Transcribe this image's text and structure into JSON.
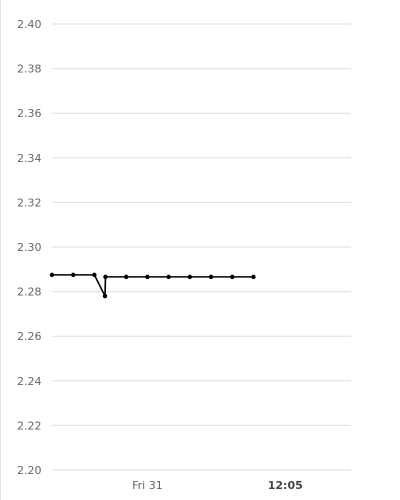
{
  "chart_data": {
    "type": "line",
    "title": "",
    "xlabel": "",
    "ylabel": "",
    "ylim": [
      2.2,
      2.4
    ],
    "y_ticks": [
      "2.40",
      "2.38",
      "2.36",
      "2.34",
      "2.32",
      "2.30",
      "2.28",
      "2.26",
      "2.24",
      "2.22",
      "2.20"
    ],
    "x_ticks": [
      {
        "label": "Fri 31",
        "at": 4.5,
        "bold": false
      },
      {
        "label": "12:05",
        "at": 11,
        "bold": true
      }
    ],
    "xlim": [
      0,
      14.1
    ],
    "grid": true,
    "legend": "none",
    "line_color": "#000000",
    "series": [
      {
        "x": [
          0,
          1,
          2,
          2.5,
          2.52,
          3.5,
          4.5,
          5.5,
          6.5,
          7.5,
          8.5,
          9.5
        ],
        "y": [
          2.2875,
          2.2875,
          2.2875,
          2.278,
          2.2866,
          2.2866,
          2.2866,
          2.2866,
          2.2866,
          2.2866,
          2.2866,
          2.2866
        ]
      }
    ]
  }
}
